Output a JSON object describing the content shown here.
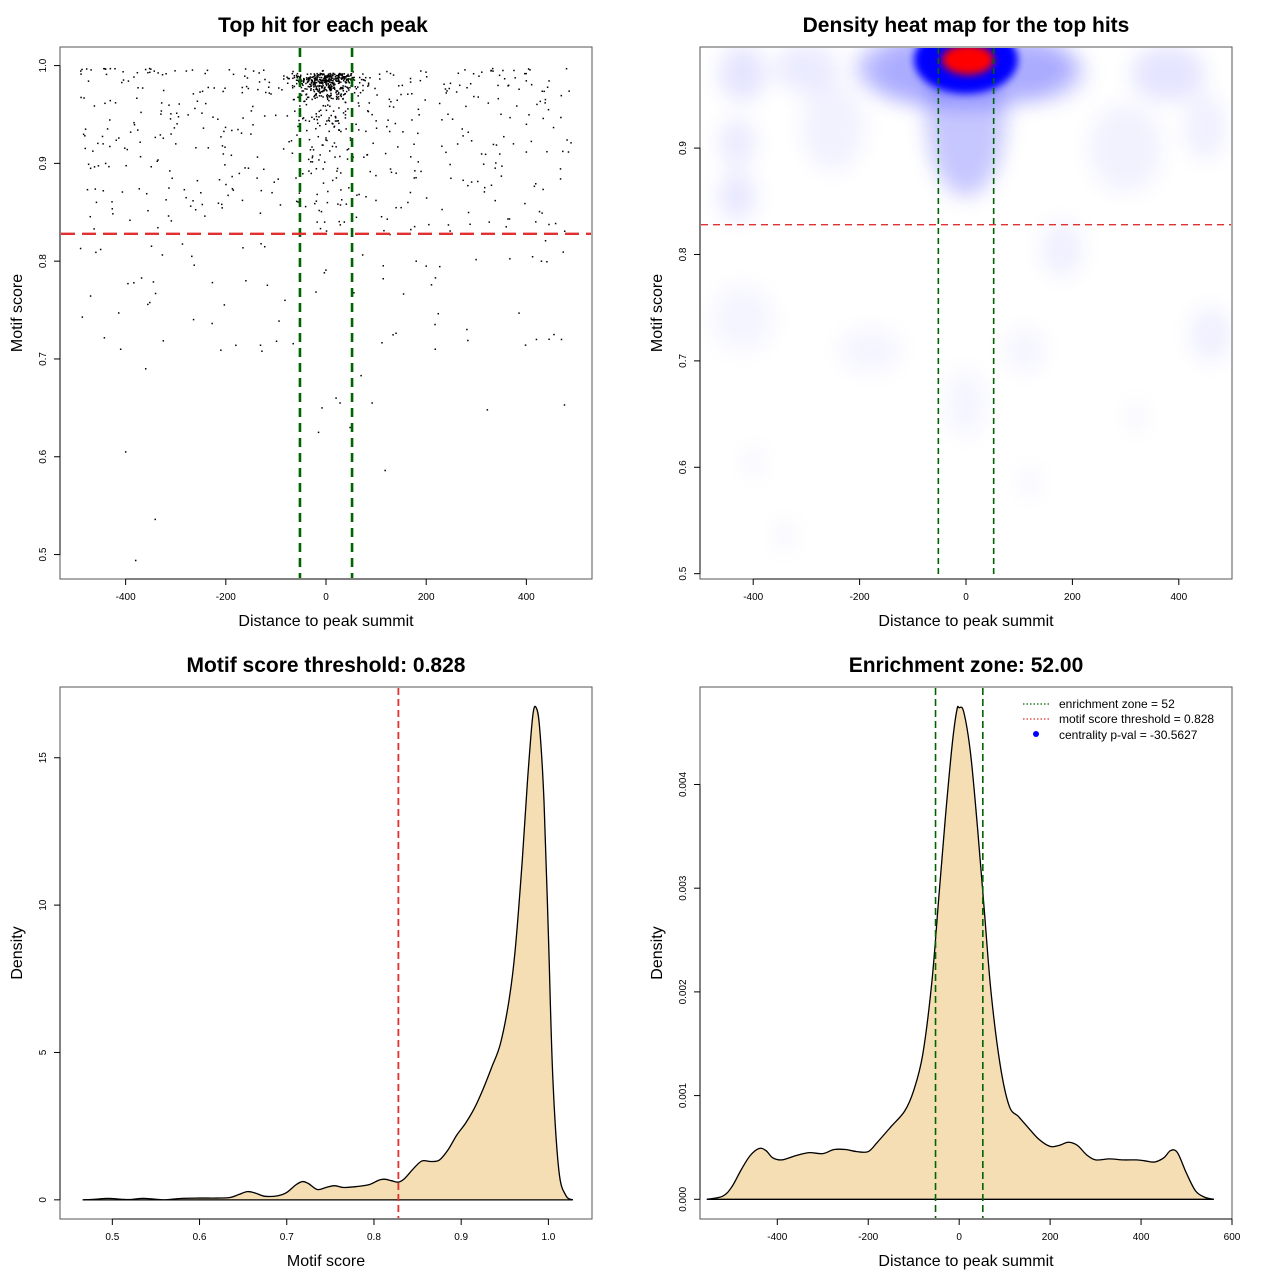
{
  "colors": {
    "enrichment_line": "#006400",
    "threshold_line": "#e03030",
    "density_fill": "#f5deb3",
    "heat_low": "#ffffff",
    "heat_mid": "#0000ff",
    "heat_high": "#ff0000",
    "point": "#000000",
    "legend_dot": "#0000ff"
  },
  "chart_data": [
    {
      "type": "scatter",
      "title": "Top hit for each peak",
      "xlabel": "Distance to peak summit",
      "ylabel": "Motif score",
      "xlim": [
        -531,
        531
      ],
      "ylim": [
        0.475,
        1.019
      ],
      "xticks": [
        -400,
        -200,
        0,
        200,
        400
      ],
      "xtick_labels": [
        "-400",
        "-200",
        "0",
        "200",
        "400"
      ],
      "yticks": [
        0.5,
        0.6,
        0.7,
        0.8,
        0.9,
        1.0
      ],
      "ytick_labels": [
        "0.5",
        "0.6",
        "0.7",
        "0.8",
        "0.9",
        "1.0"
      ],
      "vlines": [
        -52,
        52
      ],
      "hline": 0.828,
      "points_description": "~1000 points; dense cluster near x=0, y≈0.97–0.995; sparse elsewhere",
      "sample_points": [
        [
          -400,
          0.605
        ],
        [
          -380,
          0.494
        ],
        [
          -341,
          0.536
        ],
        [
          118,
          0.586
        ],
        [
          322,
          0.648
        ],
        [
          476,
          0.653
        ],
        [
          -15,
          0.625
        ],
        [
          -8,
          0.65
        ],
        [
          20,
          0.66
        ],
        [
          28,
          0.655
        ],
        [
          70,
          0.683
        ],
        [
          92,
          0.655
        ],
        [
          -410,
          0.71
        ],
        [
          -360,
          0.69
        ],
        [
          -210,
          0.709
        ],
        [
          -180,
          0.714
        ],
        [
          -128,
          0.708
        ],
        [
          218,
          0.71
        ],
        [
          420,
          0.72
        ],
        [
          455,
          0.725
        ],
        [
          470,
          0.72
        ],
        [
          -450,
          0.812
        ],
        [
          -490,
          0.813
        ],
        [
          -268,
          0.805
        ],
        [
          -160,
          0.78
        ],
        [
          -82,
          0.76
        ],
        [
          48,
          0.63
        ],
        [
          180,
          0.8
        ],
        [
          200,
          0.795
        ],
        [
          430,
          0.8
        ],
        [
          -470,
          0.895
        ],
        [
          -445,
          0.92
        ],
        [
          -440,
          0.9
        ],
        [
          -250,
          0.87
        ],
        [
          -60,
          0.885
        ],
        [
          140,
          0.89
        ],
        [
          350,
          0.887
        ],
        [
          -480,
          0.935
        ],
        [
          -300,
          0.92
        ],
        [
          -150,
          0.93
        ],
        [
          60,
          0.94
        ],
        [
          400,
          0.94
        ]
      ]
    },
    {
      "type": "heatmap",
      "title": "Density heat map for the top hits",
      "xlabel": "Distance to peak summit",
      "ylabel": "Motif score",
      "xlim": [
        -500,
        500
      ],
      "ylim": [
        0.495,
        0.995
      ],
      "xticks": [
        -400,
        -200,
        0,
        200,
        400
      ],
      "xtick_labels": [
        "-400",
        "-200",
        "0",
        "200",
        "400"
      ],
      "yticks": [
        0.5,
        0.6,
        0.7,
        0.8,
        0.9
      ],
      "ytick_labels": [
        "0.5",
        "0.6",
        "0.7",
        "0.8",
        "0.9"
      ],
      "vlines": [
        -52,
        52
      ],
      "hline": 0.828,
      "peak": {
        "x": 0,
        "y": 0.983
      },
      "colorscale": [
        "white",
        "blue",
        "red"
      ]
    },
    {
      "type": "area",
      "title": "Motif score threshold: 0.828",
      "xlabel": "Motif score",
      "ylabel": "Density",
      "xlim": [
        0.44,
        1.05
      ],
      "ylim": [
        -0.65,
        17.4
      ],
      "xticks": [
        0.5,
        0.6,
        0.7,
        0.8,
        0.9,
        1.0
      ],
      "xtick_labels": [
        "0.5",
        "0.6",
        "0.7",
        "0.8",
        "0.9",
        "1.0"
      ],
      "yticks": [
        0,
        5,
        10,
        15
      ],
      "ytick_labels": [
        "0",
        "5",
        "10",
        "15"
      ],
      "vline": 0.828,
      "x": [
        0.466,
        0.48,
        0.495,
        0.51,
        0.52,
        0.535,
        0.55,
        0.56,
        0.58,
        0.6,
        0.62,
        0.635,
        0.645,
        0.655,
        0.665,
        0.675,
        0.69,
        0.7,
        0.71,
        0.718,
        0.725,
        0.735,
        0.745,
        0.755,
        0.765,
        0.78,
        0.795,
        0.805,
        0.812,
        0.82,
        0.828,
        0.835,
        0.845,
        0.855,
        0.865,
        0.875,
        0.885,
        0.895,
        0.905,
        0.915,
        0.925,
        0.935,
        0.945,
        0.955,
        0.962,
        0.97,
        0.976,
        0.982,
        0.986,
        0.99,
        0.995,
        1.0,
        1.005,
        1.012,
        1.02,
        1.028
      ],
      "y": [
        0.0,
        0.02,
        0.05,
        0.02,
        0.01,
        0.05,
        0.02,
        0.0,
        0.05,
        0.06,
        0.06,
        0.08,
        0.18,
        0.28,
        0.22,
        0.12,
        0.14,
        0.25,
        0.5,
        0.62,
        0.55,
        0.35,
        0.42,
        0.48,
        0.42,
        0.45,
        0.52,
        0.66,
        0.7,
        0.65,
        0.6,
        0.72,
        1.05,
        1.32,
        1.3,
        1.35,
        1.7,
        2.2,
        2.6,
        3.1,
        3.75,
        4.5,
        5.3,
        6.8,
        8.5,
        11.5,
        14.2,
        16.4,
        16.7,
        16.0,
        13.5,
        9.0,
        4.2,
        1.0,
        0.15,
        0.0
      ]
    },
    {
      "type": "area",
      "title": "Enrichment zone: 52.00",
      "xlabel": "Distance to peak summit",
      "ylabel": "Density",
      "xlim": [
        -570,
        600
      ],
      "ylim": [
        -0.00019,
        0.00494
      ],
      "xticks": [
        -400,
        -200,
        0,
        200,
        400,
        600
      ],
      "xtick_labels": [
        "-400",
        "-200",
        "0",
        "200",
        "400",
        "600"
      ],
      "yticks": [
        0.0,
        0.001,
        0.002,
        0.003,
        0.004
      ],
      "ytick_labels": [
        "0.000",
        "0.001",
        "0.002",
        "0.003",
        "0.004"
      ],
      "vlines": [
        -52,
        52
      ],
      "x": [
        -555,
        -520,
        -500,
        -480,
        -460,
        -440,
        -425,
        -410,
        -390,
        -360,
        -330,
        -300,
        -275,
        -250,
        -225,
        -200,
        -180,
        -150,
        -120,
        -100,
        -80,
        -60,
        -45,
        -30,
        -15,
        -5,
        0,
        10,
        25,
        40,
        55,
        70,
        90,
        110,
        130,
        150,
        175,
        200,
        220,
        240,
        260,
        280,
        300,
        330,
        360,
        390,
        410,
        430,
        450,
        465,
        480,
        500,
        520,
        540,
        560
      ],
      "y": [
        0.0,
        3e-05,
        0.00012,
        0.00028,
        0.00042,
        0.00049,
        0.00047,
        0.0004,
        0.00038,
        0.00042,
        0.00045,
        0.00044,
        0.00048,
        0.00048,
        0.00046,
        0.00046,
        0.00055,
        0.0007,
        0.00085,
        0.00105,
        0.0014,
        0.0021,
        0.0029,
        0.0037,
        0.0044,
        0.00472,
        0.00474,
        0.0047,
        0.0043,
        0.0036,
        0.0028,
        0.002,
        0.0013,
        0.0009,
        0.0008,
        0.0007,
        0.00058,
        0.00051,
        0.00052,
        0.00055,
        0.00052,
        0.00043,
        0.00038,
        0.00039,
        0.00038,
        0.00038,
        0.00037,
        0.00036,
        0.0004,
        0.00047,
        0.00045,
        0.00025,
        8e-05,
        2e-05,
        0.0
      ],
      "legend": {
        "position": "top-right",
        "entries": [
          {
            "label": "enrichment zone = 52",
            "symbol": "dotted-line",
            "color": "#006400"
          },
          {
            "label": "motif score threshold = 0.828",
            "symbol": "dotted-line",
            "color": "#e03030"
          },
          {
            "label": "centrality p-val = -30.5627",
            "symbol": "dot",
            "color": "#0000ff"
          }
        ]
      }
    }
  ]
}
